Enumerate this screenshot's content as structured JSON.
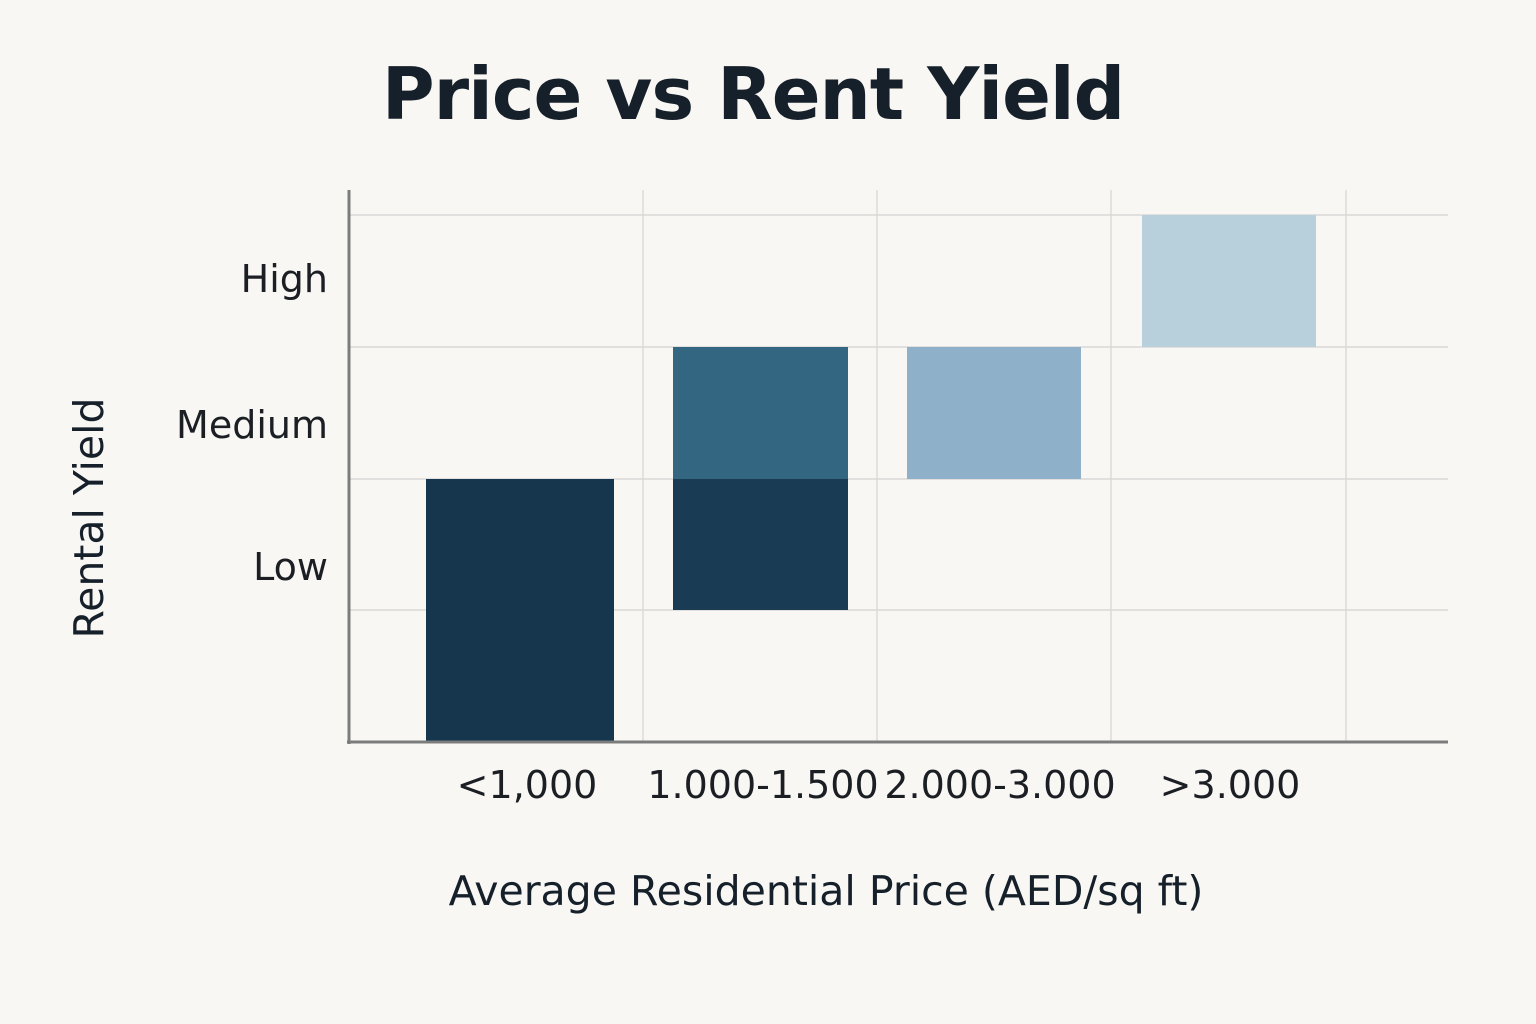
{
  "chart_data": {
    "type": "heatmap",
    "title": "Price vs Rent Yield",
    "xlabel": "Average Residential Price (AED/sq ft)",
    "ylabel": "Rental Yield",
    "x_categories": [
      "<1,000",
      "1.000-1.500",
      "2.000-3.000",
      ">3.000"
    ],
    "y_categories": [
      "Low",
      "Medium",
      "High"
    ],
    "grid": true,
    "cells": [
      {
        "x": "<1,000",
        "y_from": "below axis",
        "y_to": "Low",
        "color": "#15364d"
      },
      {
        "x": "1.000-1.500",
        "y": "Low",
        "color": "#1a3b54"
      },
      {
        "x": "1.000-1.500",
        "y": "Medium",
        "color": "#336681"
      },
      {
        "x": "2.000-3.000",
        "y": "Medium",
        "color": "#8eb0c9"
      },
      {
        "x": ">3.000",
        "y": "High",
        "color": "#b7d0dc"
      }
    ]
  }
}
